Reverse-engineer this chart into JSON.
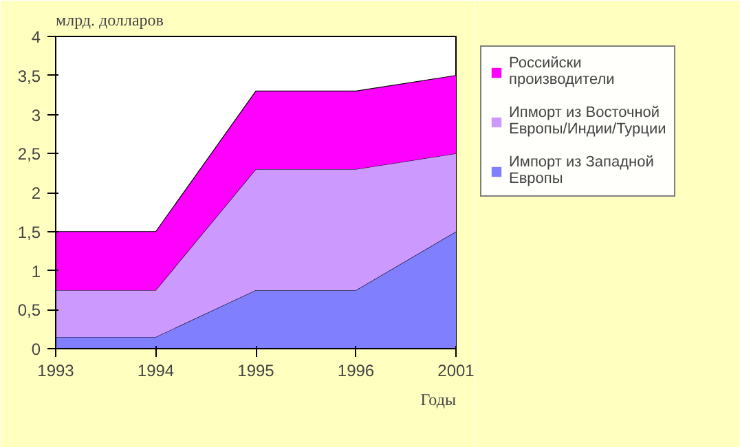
{
  "chart_data": {
    "type": "area",
    "stacked": true,
    "title": "млрд. долларов",
    "xlabel": "Годы",
    "categories": [
      "1993",
      "1994",
      "1995",
      "1996",
      "2001"
    ],
    "series": [
      {
        "name": "Импорт из Западной Европы",
        "color": "#8080ff",
        "values": [
          0.15,
          0.15,
          0.75,
          0.75,
          1.5
        ]
      },
      {
        "name": "Ипморт из Восточной Европы/Индии/Турции",
        "color": "#cc99ff",
        "values": [
          0.6,
          0.6,
          1.55,
          1.55,
          1.0
        ]
      },
      {
        "name": "Российски производители",
        "color": "#ff00ff",
        "values": [
          0.75,
          0.75,
          1.0,
          1.0,
          1.0
        ]
      }
    ],
    "ylim": [
      0,
      4
    ],
    "yticks": [
      0,
      {
        "value": 0.5,
        "label": "0,5"
      },
      1,
      {
        "value": 1.5,
        "label": "1,5"
      },
      2,
      {
        "value": 2.5,
        "label": "2,5"
      },
      3,
      {
        "value": 3.5,
        "label": "3,5"
      },
      4
    ],
    "grid": false,
    "legend": "right"
  }
}
